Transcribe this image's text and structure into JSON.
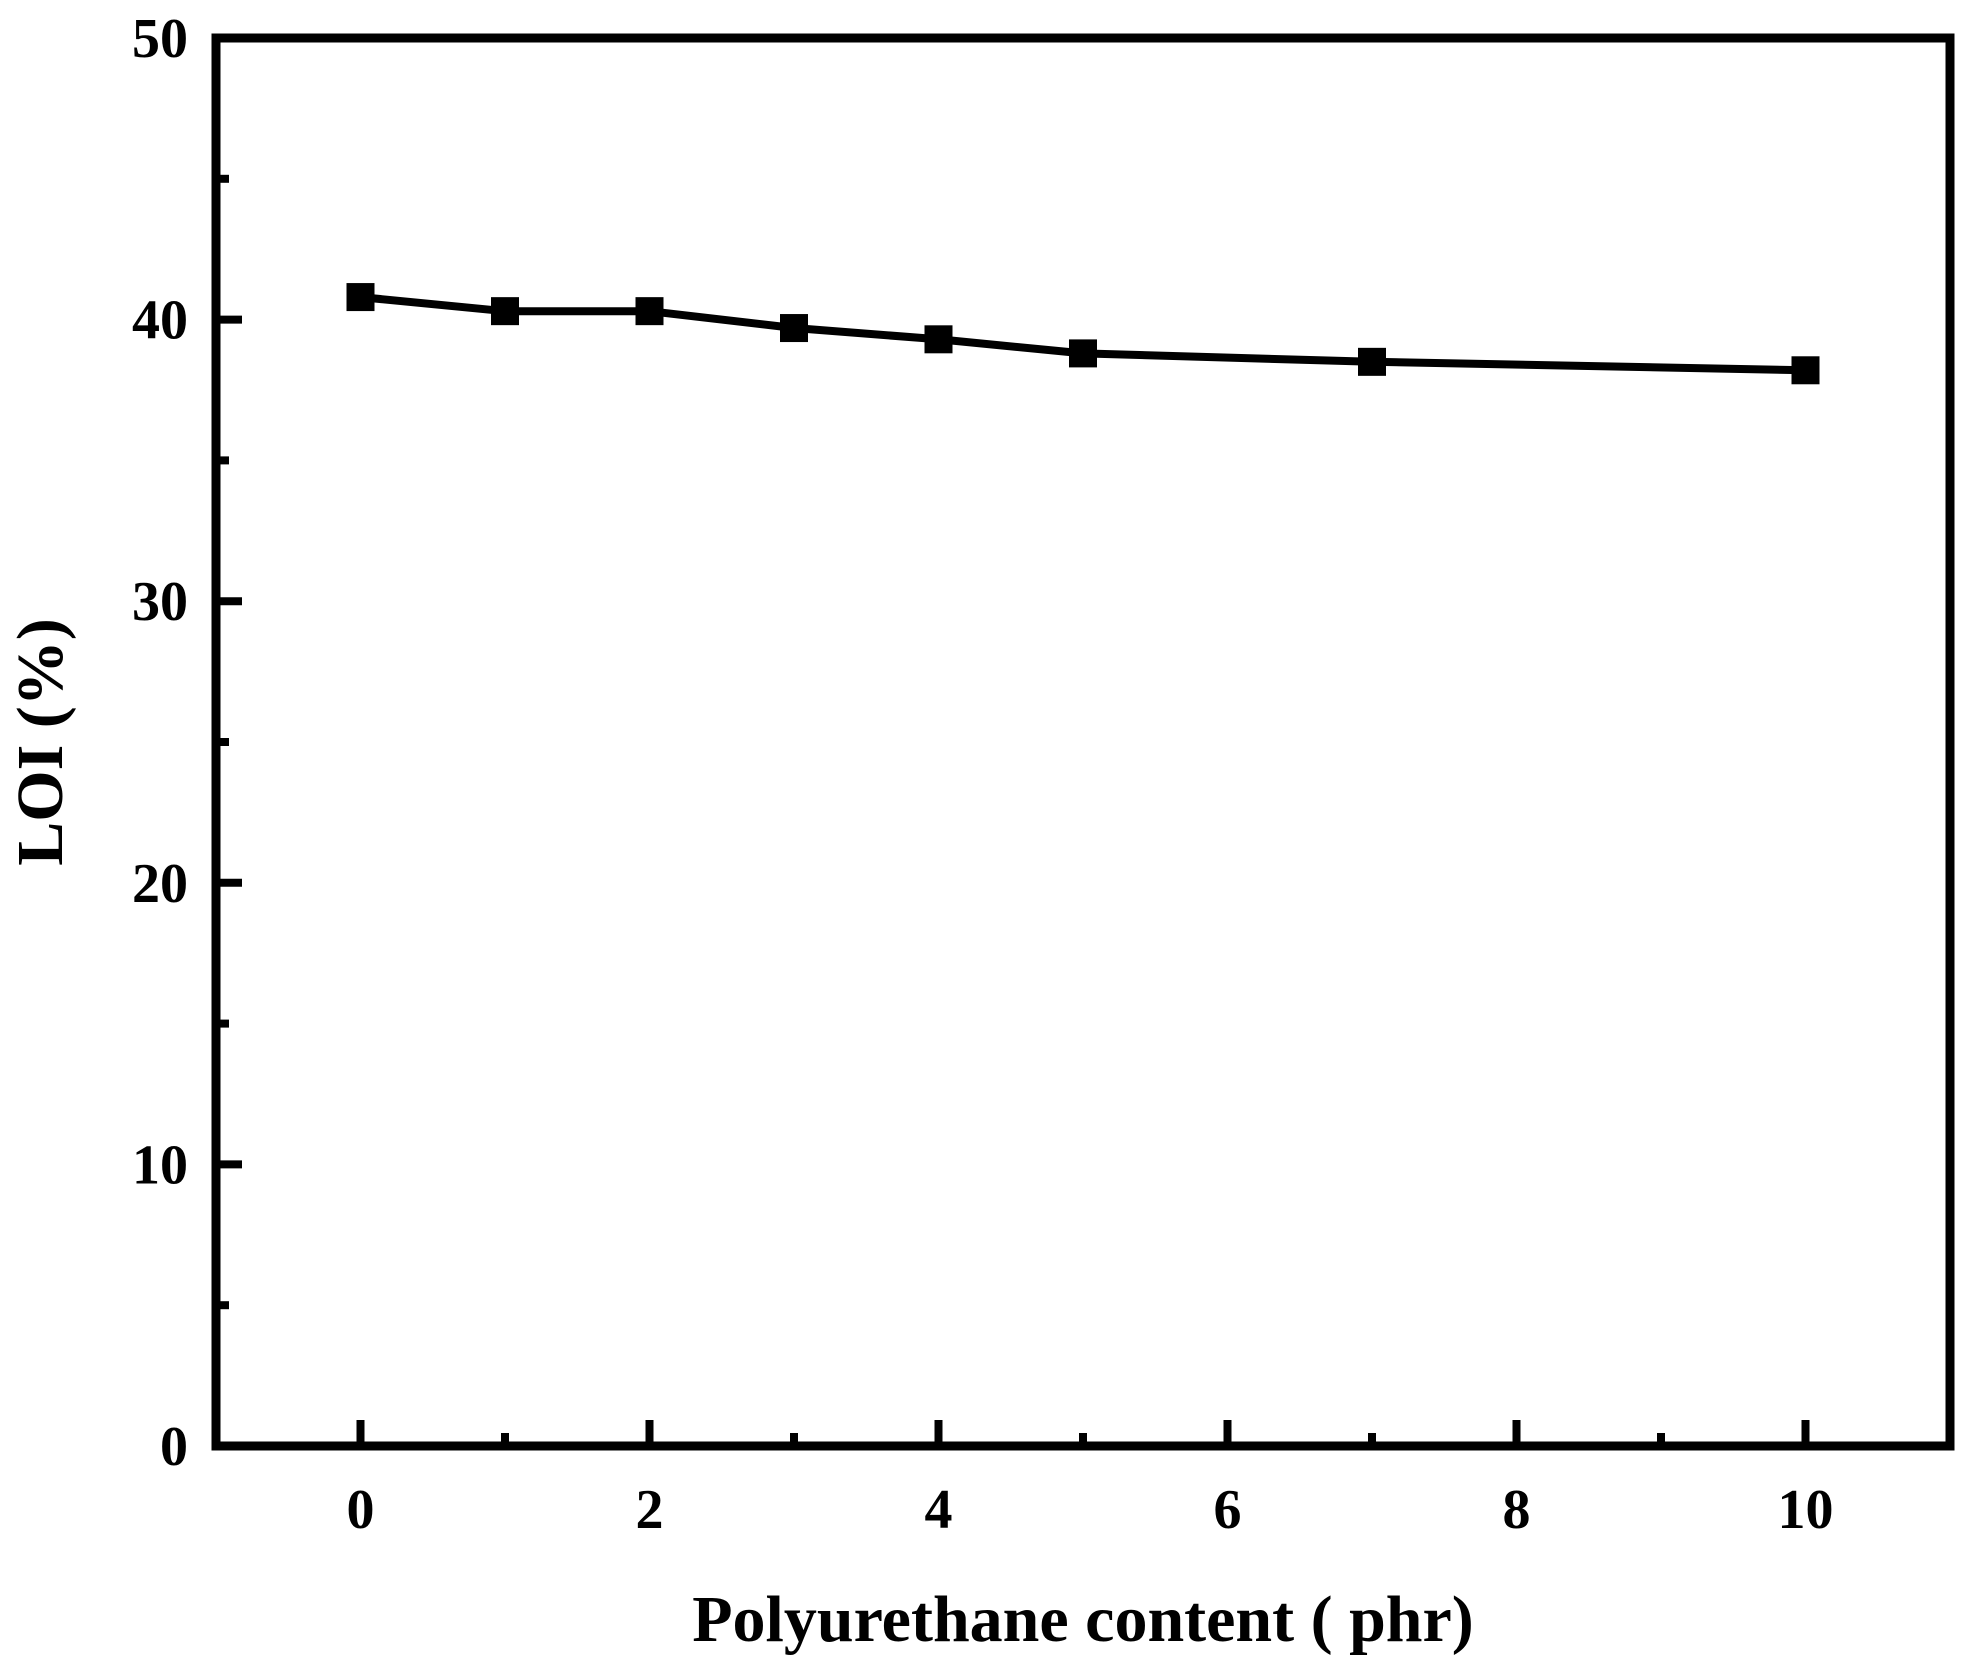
{
  "chart_data": {
    "type": "line",
    "title": "",
    "xlabel": "Polyurethane content ( phr)",
    "ylabel": "LOI (%)",
    "xlim": [
      -1,
      11
    ],
    "ylim": [
      0,
      50
    ],
    "x_ticks": [
      "0",
      "2",
      "4",
      "6",
      "8",
      "10"
    ],
    "y_ticks": [
      "0",
      "10",
      "20",
      "30",
      "40",
      "50"
    ],
    "grid": false,
    "legend": "none",
    "marker": "square",
    "line_color": "#000000",
    "series": [
      {
        "x": [
          0,
          1,
          2,
          3,
          4,
          5,
          7,
          10
        ],
        "y": [
          40.8,
          40.3,
          40.3,
          39.7,
          39.3,
          38.8,
          38.5,
          38.2
        ]
      }
    ]
  }
}
